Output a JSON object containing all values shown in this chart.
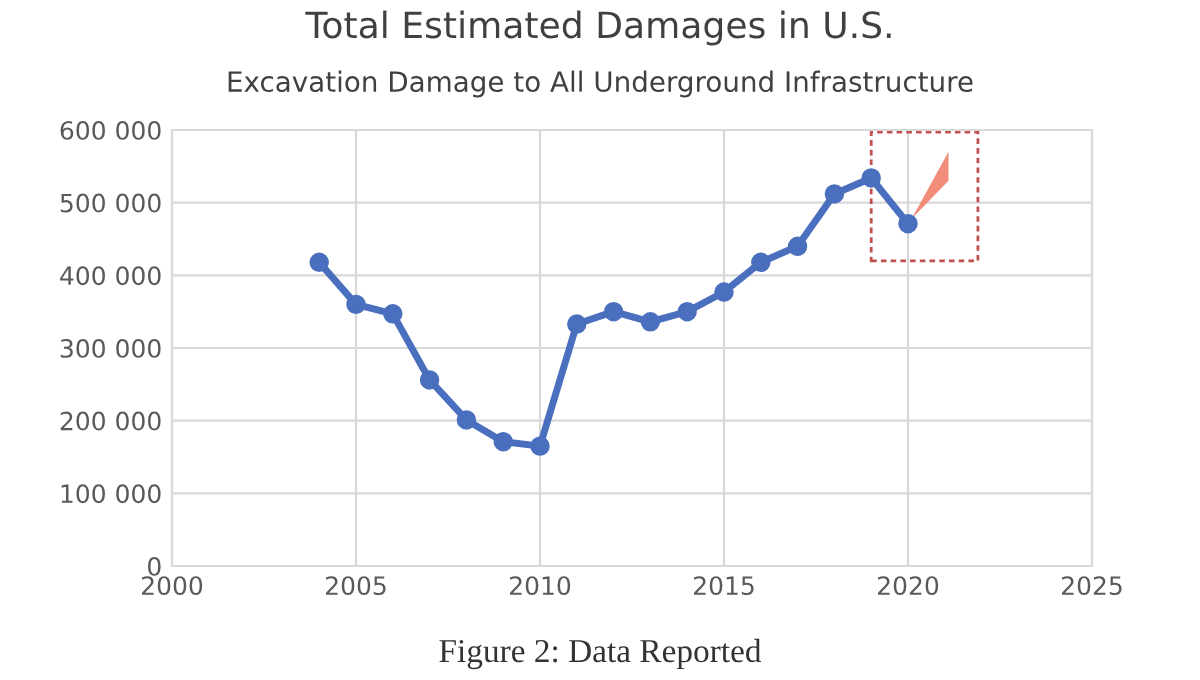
{
  "chart_data": {
    "type": "line",
    "title": "Total Estimated Damages in U.S.",
    "subtitle": "Excavation Damage to All Underground Infrastructure",
    "x": [
      2004,
      2005,
      2006,
      2007,
      2008,
      2009,
      2010,
      2011,
      2012,
      2013,
      2014,
      2015,
      2016,
      2017,
      2018,
      2019,
      2020
    ],
    "series": [
      {
        "color": "#4a6fbe",
        "values": [
          418000,
          360000,
          347000,
          256000,
          201000,
          171000,
          165000,
          333000,
          350000,
          336000,
          350000,
          377000,
          418000,
          440000,
          512000,
          534000,
          471000
        ]
      }
    ],
    "xlim": [
      2000,
      2025
    ],
    "xticks": [
      2000,
      2005,
      2010,
      2015,
      2020,
      2025
    ],
    "ylim": [
      0,
      600000
    ],
    "yticks": [
      0,
      {
        "value": 100000,
        "label": "100 000"
      },
      {
        "value": 200000,
        "label": "200 000"
      },
      {
        "value": 300000,
        "label": "300 000"
      },
      {
        "value": 400000,
        "label": "400 000"
      },
      {
        "value": 500000,
        "label": "500 000"
      },
      {
        "value": 600000,
        "label": "600 000"
      }
    ],
    "grid": true,
    "marker": "circle",
    "line_style": "solid",
    "annotations": [
      "Figure 2: Data Reported"
    ]
  }
}
